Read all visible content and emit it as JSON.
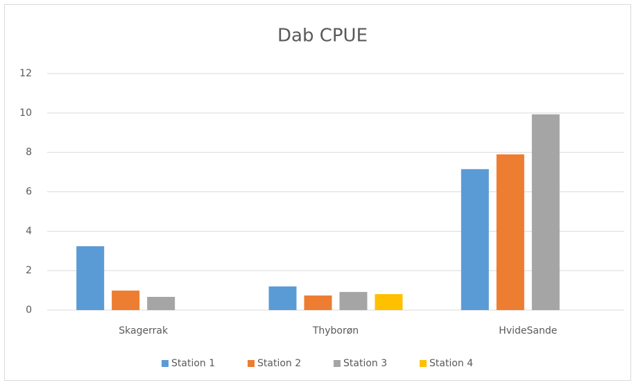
{
  "chart_data": {
    "type": "bar",
    "title": "Dab CPUE",
    "categories": [
      "Skagerrak",
      "Thyborøn",
      "HvideSande"
    ],
    "series": [
      {
        "name": "Station 1",
        "color": "#5b9bd5",
        "values": [
          3.24,
          1.2,
          7.15
        ]
      },
      {
        "name": "Station 2",
        "color": "#ed7d31",
        "values": [
          0.99,
          0.74,
          7.9
        ]
      },
      {
        "name": "Station 3",
        "color": "#a5a5a5",
        "values": [
          0.67,
          0.92,
          9.93
        ]
      },
      {
        "name": "Station 4",
        "color": "#ffc000",
        "values": [
          null,
          0.81,
          null
        ]
      }
    ],
    "ylim": [
      0,
      12
    ],
    "yticks": [
      0,
      2,
      4,
      6,
      8,
      10,
      12
    ],
    "grid": true,
    "legend": "bottom"
  }
}
